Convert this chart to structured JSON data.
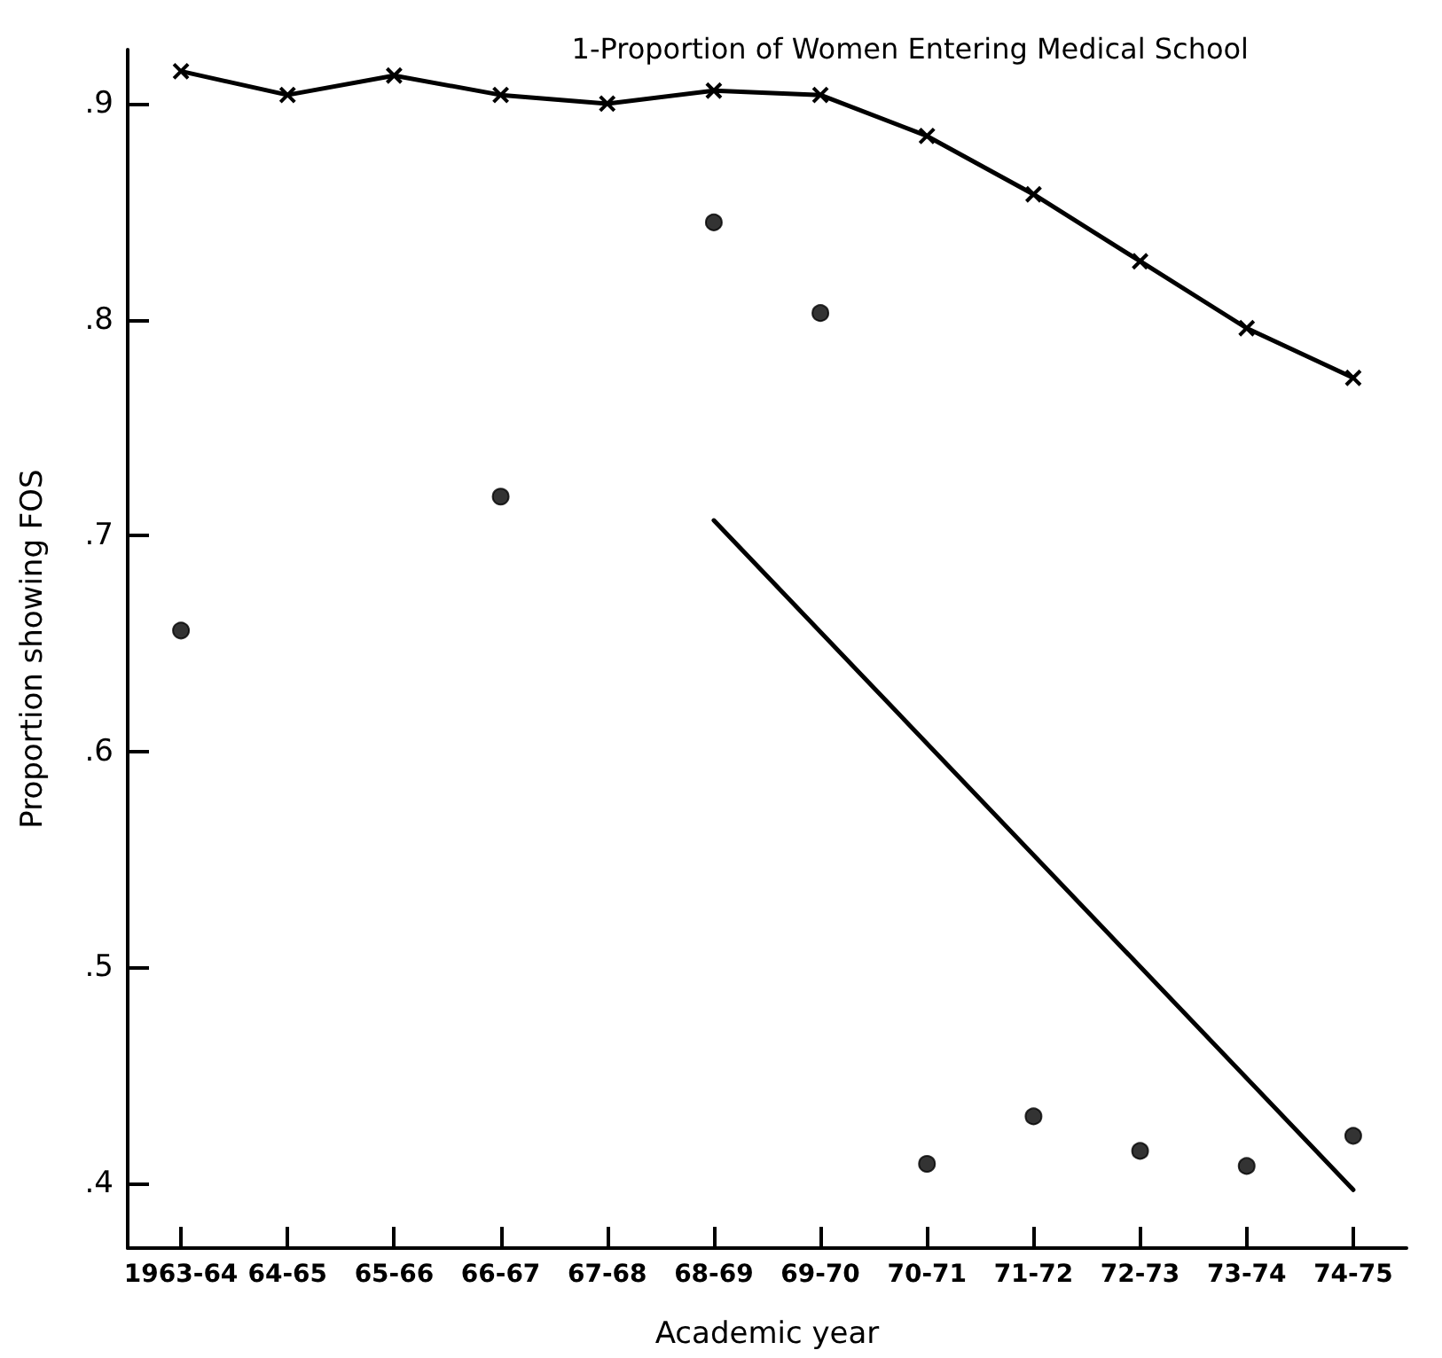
{
  "chart_data": {
    "type": "scatter",
    "xlabel": "Academic year",
    "ylabel": "Proportion showing FOS",
    "categories": [
      "1963-64",
      "64-65",
      "65-66",
      "66-67",
      "67-68",
      "68-69",
      "69-70",
      "70-71",
      "71-72",
      "72-73",
      "73-74",
      "74-75"
    ],
    "ylim": [
      0.37,
      0.925
    ],
    "yticks": [
      {
        "value": 0.4,
        "label": ".4"
      },
      {
        "value": 0.5,
        "label": ".5"
      },
      {
        "value": 0.6,
        "label": ".6"
      },
      {
        "value": 0.7,
        "label": ".7"
      },
      {
        "value": 0.8,
        "label": ".8"
      },
      {
        "value": 0.9,
        "label": ".9"
      }
    ],
    "grid": false,
    "legend": false,
    "series": [
      {
        "type": "line",
        "name": "1-Proportion of Women Entering Medical School",
        "color": "#000000",
        "marker": "cross",
        "values": [
          0.915,
          0.904,
          0.913,
          0.904,
          0.9,
          0.906,
          0.904,
          0.885,
          0.858,
          0.827,
          0.796,
          0.773
        ]
      },
      {
        "color": "#000000",
        "marker": "circle",
        "values": [
          0.656,
          null,
          null,
          0.718,
          null,
          0.845,
          0.803,
          0.409,
          0.431,
          0.415,
          0.408,
          0.422
        ]
      },
      {
        "type": "line",
        "color": "#000000",
        "marker": "none",
        "x": [
          "68-69",
          "74-75"
        ],
        "values": [
          0.707,
          0.397
        ]
      }
    ]
  }
}
